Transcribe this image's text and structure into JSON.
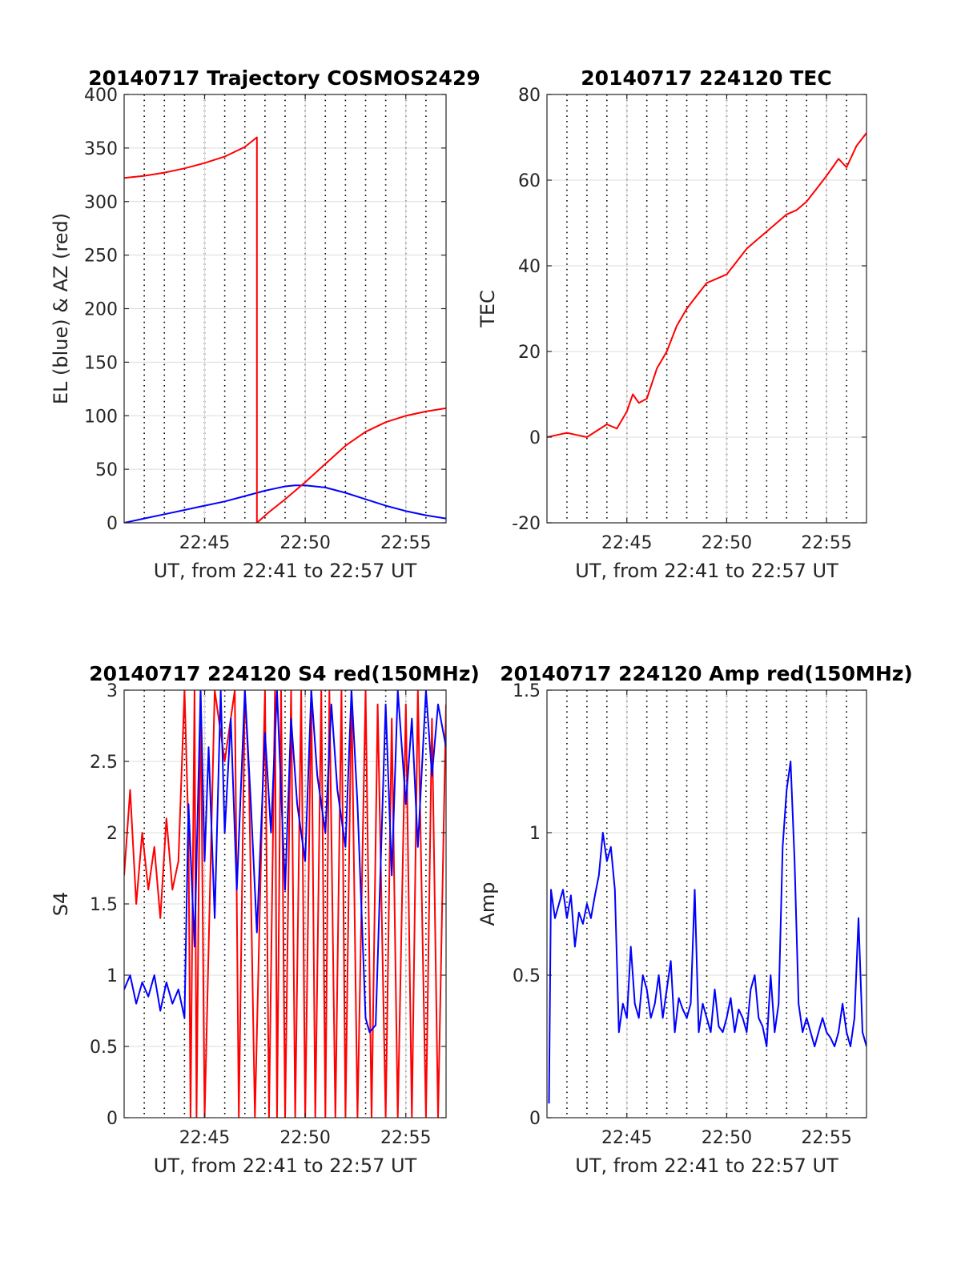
{
  "figure": {
    "date": "20140717"
  },
  "chart_data": [
    {
      "id": "trajectory",
      "type": "line",
      "title": "20140717 Trajectory COSMOS2429",
      "xlabel": "UT, from 22:41 to 22:57 UT",
      "ylabel": "EL (blue) & AZ (red)",
      "xlim": [
        0,
        16
      ],
      "x_unit": "minutes after 22:41 UT",
      "xticks": [
        4,
        9,
        14
      ],
      "xtick_labels": [
        "22:45",
        "22:50",
        "22:55"
      ],
      "ylim": [
        0,
        400
      ],
      "yticks": [
        0,
        50,
        100,
        150,
        200,
        250,
        300,
        350,
        400
      ],
      "ytick_labels": [
        "0",
        "50",
        "100",
        "150",
        "200",
        "250",
        "300",
        "350",
        "400"
      ],
      "grid": true,
      "series": [
        {
          "name": "EL",
          "color": "#0000ff",
          "x": [
            0,
            1,
            2,
            3,
            4,
            5,
            6,
            7,
            7.5,
            8,
            8.5,
            9,
            10,
            11,
            12,
            13,
            14,
            15,
            16
          ],
          "y": [
            0,
            4,
            8,
            12,
            16,
            20,
            25,
            30,
            32,
            34,
            35,
            35,
            33,
            28,
            22,
            16,
            11,
            7,
            4
          ]
        },
        {
          "name": "AZ",
          "color": "#ff0000",
          "x": [
            0,
            1,
            2,
            3,
            4,
            5,
            6,
            6.6,
            6.6,
            7.2,
            8,
            9,
            10,
            11,
            12,
            13,
            14,
            15,
            16
          ],
          "y": [
            322,
            324,
            327,
            331,
            336,
            342,
            351,
            360,
            0,
            10,
            22,
            38,
            55,
            72,
            85,
            94,
            100,
            104,
            107
          ]
        }
      ]
    },
    {
      "id": "tec",
      "type": "line",
      "title": "20140717 224120 TEC",
      "xlabel": "UT, from 22:41 to 22:57 UT",
      "ylabel": "TEC",
      "xlim": [
        0,
        16
      ],
      "xticks": [
        4,
        9,
        14
      ],
      "xtick_labels": [
        "22:45",
        "22:50",
        "22:55"
      ],
      "ylim": [
        -20,
        80
      ],
      "yticks": [
        -20,
        0,
        20,
        40,
        60,
        80
      ],
      "ytick_labels": [
        "-20",
        "0",
        "20",
        "40",
        "60",
        "80"
      ],
      "grid": true,
      "series": [
        {
          "name": "TEC",
          "color": "#ff0000",
          "x": [
            0,
            0.5,
            1,
            1.5,
            2,
            2.5,
            3,
            3.5,
            4,
            4.3,
            4.6,
            5,
            5.5,
            6,
            6.5,
            7,
            7.5,
            8,
            8.5,
            9,
            9.5,
            10,
            10.5,
            11,
            11.5,
            12,
            12.5,
            13,
            13.5,
            14,
            14.3,
            14.6,
            15,
            15.5,
            16
          ],
          "y": [
            0,
            0.5,
            1,
            0.5,
            0,
            1.5,
            3,
            2,
            6,
            10,
            8,
            9,
            16,
            20,
            26,
            30,
            33,
            36,
            37,
            38,
            41,
            44,
            46,
            48,
            50,
            52,
            53,
            55,
            58,
            61,
            63,
            65,
            63,
            68,
            71
          ]
        }
      ]
    },
    {
      "id": "s4",
      "type": "line",
      "title": "20140717 224120 S4 red(150MHz)",
      "xlabel": "UT, from 22:41 to 22:57 UT",
      "ylabel": "S4",
      "xlim": [
        0,
        16
      ],
      "xticks": [
        4,
        9,
        14
      ],
      "xtick_labels": [
        "22:45",
        "22:50",
        "22:55"
      ],
      "ylim": [
        0,
        3
      ],
      "yticks": [
        0,
        0.5,
        1,
        1.5,
        2,
        2.5,
        3
      ],
      "ytick_labels": [
        "0",
        "0.5",
        "1",
        "1.5",
        "2",
        "2.5",
        "3"
      ],
      "grid": true,
      "series": [
        {
          "name": "S4 red",
          "color": "#ff0000",
          "x": [
            0,
            0.3,
            0.6,
            0.9,
            1.2,
            1.5,
            1.8,
            2.1,
            2.4,
            2.7,
            3.0,
            3.2,
            3.3,
            3.5,
            3.6,
            3.8,
            4.0,
            4.5,
            5.0,
            5.5,
            5.7,
            6.0,
            6.2,
            6.5,
            7.0,
            7.2,
            7.5,
            7.6,
            7.8,
            8.0,
            8.3,
            8.5,
            8.8,
            9.0,
            9.3,
            9.5,
            9.8,
            10.0,
            10.2,
            10.5,
            10.8,
            11.0,
            11.3,
            11.6,
            12.0,
            12.3,
            12.6,
            13.0,
            13.3,
            13.6,
            14.0,
            14.3,
            14.6,
            15.0,
            15.3,
            15.6,
            16
          ],
          "y": [
            1.7,
            2.3,
            1.5,
            2.0,
            1.6,
            1.9,
            1.4,
            2.1,
            1.6,
            1.8,
            3.0,
            2.0,
            0,
            3.0,
            0,
            3.0,
            0,
            3.0,
            2.5,
            3.0,
            0,
            3.0,
            2.4,
            0,
            3.0,
            0,
            3.0,
            0,
            3.0,
            0,
            3.0,
            0,
            3.0,
            0,
            3.0,
            0,
            3.0,
            0,
            3.0,
            0,
            3.0,
            0,
            3.0,
            0,
            3.0,
            0,
            2.9,
            0,
            2.8,
            0,
            2.9,
            0,
            3.0,
            0,
            2.8,
            0,
            2.9
          ]
        },
        {
          "name": "S4 blue",
          "color": "#0000ff",
          "x": [
            0,
            0.3,
            0.6,
            0.9,
            1.2,
            1.5,
            1.8,
            2.1,
            2.4,
            2.7,
            3.0,
            3.2,
            3.5,
            3.8,
            4.0,
            4.2,
            4.5,
            4.8,
            5.0,
            5.3,
            5.6,
            6.0,
            6.3,
            6.6,
            7.0,
            7.3,
            7.6,
            8.0,
            8.3,
            8.6,
            9.0,
            9.3,
            9.6,
            10.0,
            10.3,
            10.6,
            11.0,
            11.3,
            11.6,
            12.0,
            12.2,
            12.5,
            12.8,
            13.0,
            13.3,
            13.6,
            14.0,
            14.3,
            14.6,
            15.0,
            15.3,
            15.6,
            16
          ],
          "y": [
            0.9,
            1.0,
            0.8,
            0.95,
            0.85,
            1.0,
            0.75,
            0.95,
            0.8,
            0.9,
            0.7,
            2.2,
            1.2,
            3.0,
            1.8,
            2.6,
            1.4,
            3.0,
            2.0,
            2.8,
            1.6,
            3.0,
            2.2,
            1.3,
            2.7,
            2.0,
            3.0,
            1.6,
            2.8,
            2.2,
            1.8,
            3.0,
            2.4,
            2.0,
            2.9,
            2.3,
            1.9,
            3.0,
            2.2,
            0.7,
            0.6,
            0.65,
            2.0,
            2.9,
            1.7,
            3.0,
            2.2,
            2.8,
            1.9,
            3.0,
            2.4,
            2.9,
            2.6
          ]
        }
      ]
    },
    {
      "id": "amp",
      "type": "line",
      "title": "20140717 224120 Amp red(150MHz)",
      "xlabel": "UT, from 22:41 to 22:57 UT",
      "ylabel": "Amp",
      "xlim": [
        0,
        16
      ],
      "xticks": [
        4,
        9,
        14
      ],
      "xtick_labels": [
        "22:45",
        "22:50",
        "22:55"
      ],
      "ylim": [
        0,
        1.5
      ],
      "yticks": [
        0,
        0.5,
        1,
        1.5
      ],
      "ytick_labels": [
        "0",
        "0.5",
        "1",
        "1.5"
      ],
      "grid": true,
      "series": [
        {
          "name": "Amp",
          "color": "#0000ff",
          "x": [
            0.1,
            0.2,
            0.4,
            0.6,
            0.8,
            1.0,
            1.2,
            1.4,
            1.6,
            1.8,
            2.0,
            2.2,
            2.4,
            2.6,
            2.8,
            3.0,
            3.2,
            3.4,
            3.6,
            3.8,
            4.0,
            4.2,
            4.4,
            4.6,
            4.8,
            5.0,
            5.2,
            5.4,
            5.6,
            5.8,
            6.0,
            6.2,
            6.4,
            6.6,
            6.8,
            7.0,
            7.2,
            7.4,
            7.6,
            7.8,
            8.0,
            8.2,
            8.4,
            8.6,
            8.8,
            9.0,
            9.2,
            9.4,
            9.6,
            9.8,
            10.0,
            10.2,
            10.4,
            10.6,
            10.8,
            11.0,
            11.2,
            11.4,
            11.6,
            11.8,
            12.0,
            12.2,
            12.4,
            12.6,
            12.8,
            13.0,
            13.2,
            13.4,
            13.6,
            13.8,
            14.0,
            14.2,
            14.4,
            14.6,
            14.8,
            15.0,
            15.2,
            15.4,
            15.6,
            15.8,
            16.0
          ],
          "y": [
            0.05,
            0.8,
            0.7,
            0.75,
            0.8,
            0.7,
            0.78,
            0.6,
            0.72,
            0.68,
            0.75,
            0.7,
            0.78,
            0.85,
            1.0,
            0.9,
            0.95,
            0.8,
            0.3,
            0.4,
            0.35,
            0.6,
            0.4,
            0.35,
            0.5,
            0.45,
            0.35,
            0.4,
            0.5,
            0.35,
            0.45,
            0.55,
            0.3,
            0.42,
            0.38,
            0.35,
            0.4,
            0.8,
            0.3,
            0.4,
            0.35,
            0.3,
            0.45,
            0.32,
            0.3,
            0.35,
            0.42,
            0.3,
            0.38,
            0.35,
            0.3,
            0.45,
            0.5,
            0.35,
            0.32,
            0.25,
            0.5,
            0.3,
            0.4,
            0.95,
            1.15,
            1.25,
            0.9,
            0.4,
            0.3,
            0.35,
            0.3,
            0.25,
            0.3,
            0.35,
            0.3,
            0.28,
            0.25,
            0.3,
            0.4,
            0.3,
            0.25,
            0.35,
            0.7,
            0.3,
            0.25
          ]
        }
      ]
    }
  ]
}
